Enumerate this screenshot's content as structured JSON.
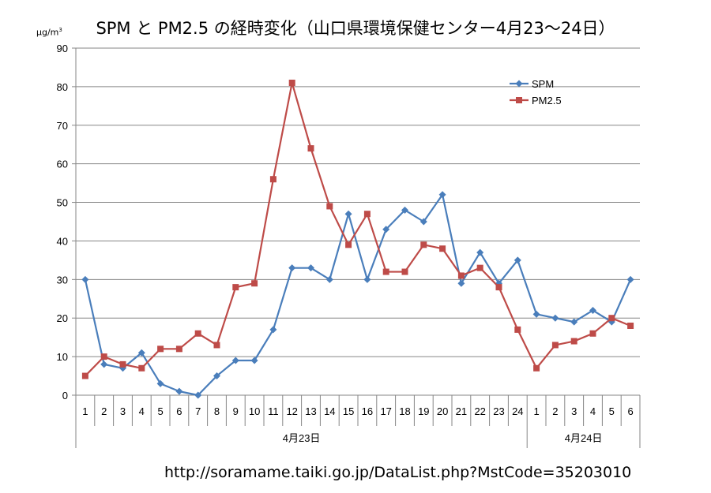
{
  "title": "SPM と PM2.5 の経時変化（山口県環境保健センター4月23～24日）",
  "unit": {
    "base": "µg/m",
    "exp": "3"
  },
  "source_url": "http://soramame.taiki.go.jp/DataList.php?MstCode=35203010",
  "chart_data": {
    "type": "line",
    "categories": [
      "1",
      "2",
      "3",
      "4",
      "5",
      "6",
      "7",
      "8",
      "9",
      "10",
      "11",
      "12",
      "13",
      "14",
      "15",
      "16",
      "17",
      "18",
      "19",
      "20",
      "21",
      "22",
      "23",
      "24",
      "1",
      "2",
      "3",
      "4",
      "5",
      "6"
    ],
    "groups": [
      {
        "label": "4月23日",
        "count": 24
      },
      {
        "label": "4月24日",
        "count": 6
      }
    ],
    "ylim": [
      0,
      90
    ],
    "yticks": [
      0,
      10,
      20,
      30,
      40,
      50,
      60,
      70,
      80,
      90
    ],
    "grid": "horizontal",
    "legend": "top-right",
    "series": [
      {
        "name": "SPM",
        "color": "#4a7ebb",
        "marker": "diamond",
        "values": [
          30,
          8,
          7,
          11,
          3,
          1,
          0,
          5,
          9,
          9,
          17,
          33,
          33,
          30,
          47,
          30,
          43,
          48,
          45,
          52,
          29,
          37,
          29,
          35,
          21,
          20,
          19,
          22,
          19,
          30
        ]
      },
      {
        "name": "PM2.5",
        "color": "#be4b48",
        "marker": "square",
        "values": [
          5,
          10,
          8,
          7,
          12,
          12,
          16,
          13,
          28,
          29,
          56,
          81,
          64,
          49,
          39,
          47,
          32,
          32,
          39,
          38,
          31,
          33,
          28,
          17,
          7,
          13,
          14,
          16,
          20,
          18
        ]
      }
    ]
  }
}
